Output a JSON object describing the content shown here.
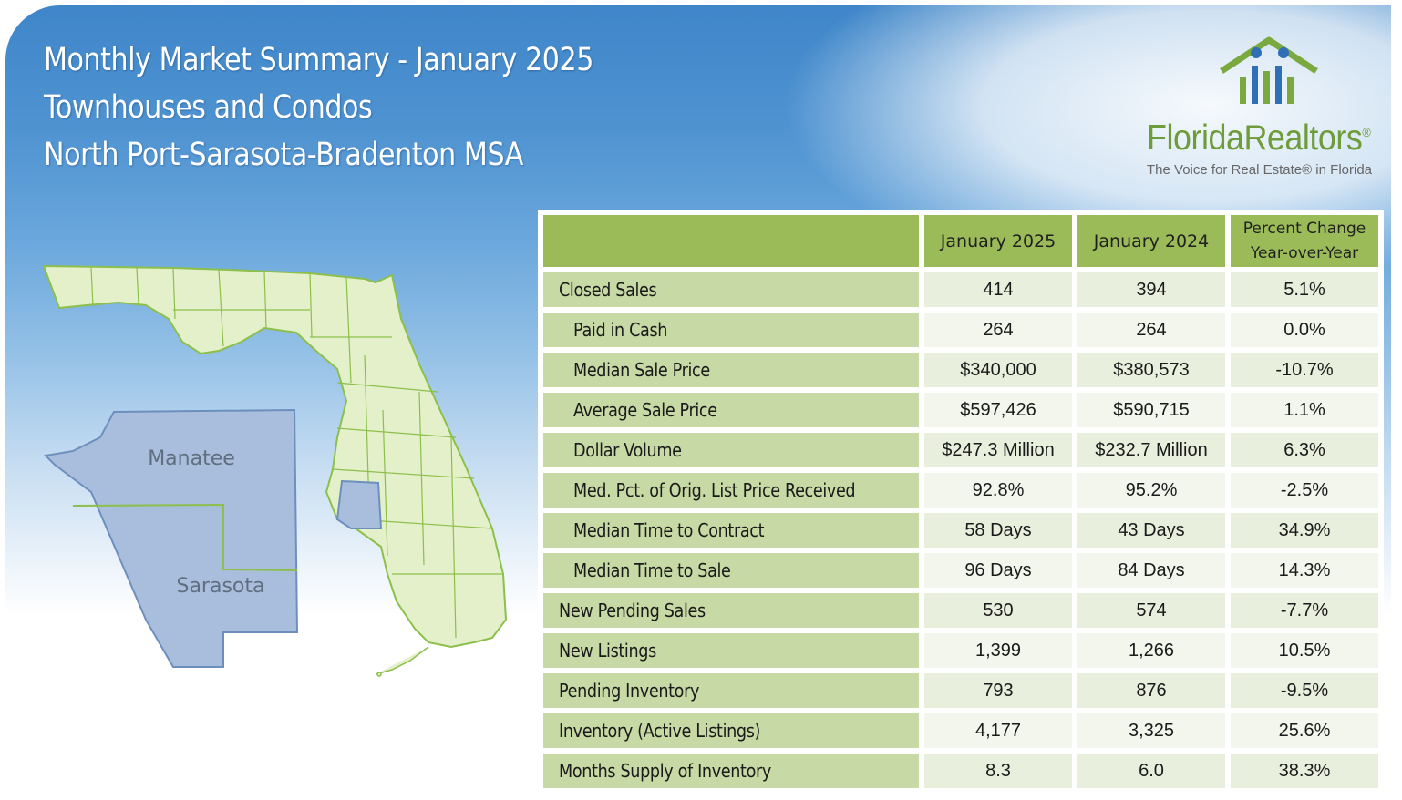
{
  "header": {
    "title_line1": "Monthly Market Summary - January 2025",
    "title_line2": "Townhouses and Condos",
    "title_line3": "North Port-Sarasota-Bradenton MSA"
  },
  "logo": {
    "brand_left": "Florida",
    "brand_right": "Realtors",
    "registered": "®",
    "tagline": "The Voice for Real Estate® in Florida"
  },
  "map": {
    "inset_county_north": "Manatee",
    "inset_county_south": "Sarasota"
  },
  "table": {
    "columns": [
      "January 2025",
      "January 2024",
      "Percent Change",
      "Year-over-Year"
    ],
    "rows": [
      {
        "label": "Closed Sales",
        "jan2025": "414",
        "jan2024": "394",
        "pct": "5.1%"
      },
      {
        "label": "Paid in Cash",
        "jan2025": "264",
        "jan2024": "264",
        "pct": "0.0%"
      },
      {
        "label": "Median Sale Price",
        "jan2025": "$340,000",
        "jan2024": "$380,573",
        "pct": "-10.7%"
      },
      {
        "label": "Average Sale Price",
        "jan2025": "$597,426",
        "jan2024": "$590,715",
        "pct": "1.1%"
      },
      {
        "label": "Dollar Volume",
        "jan2025": "$247.3 Million",
        "jan2024": "$232.7 Million",
        "pct": "6.3%"
      },
      {
        "label": "Med. Pct. of Orig. List Price Received",
        "jan2025": "92.8%",
        "jan2024": "95.2%",
        "pct": "-2.5%"
      },
      {
        "label": "Median Time to Contract",
        "jan2025": "58 Days",
        "jan2024": "43 Days",
        "pct": "34.9%"
      },
      {
        "label": "Median Time to Sale",
        "jan2025": "96 Days",
        "jan2024": "84 Days",
        "pct": "14.3%"
      },
      {
        "label": "New Pending Sales",
        "jan2025": "530",
        "jan2024": "574",
        "pct": "-7.7%"
      },
      {
        "label": "New Listings",
        "jan2025": "1,399",
        "jan2024": "1,266",
        "pct": "10.5%"
      },
      {
        "label": "Pending Inventory",
        "jan2025": "793",
        "jan2024": "876",
        "pct": "-9.5%"
      },
      {
        "label": "Inventory (Active Listings)",
        "jan2025": "4,177",
        "jan2024": "3,325",
        "pct": "25.6%"
      },
      {
        "label": "Months Supply of Inventory",
        "jan2025": "8.3",
        "jan2024": "6.0",
        "pct": "38.3%"
      }
    ]
  },
  "colors": {
    "header_green": "#9bbb59",
    "label_green": "#c7d9a4",
    "map_fill": "#e3f0c9",
    "map_stroke": "#8cbf4b",
    "inset_fill": "#a9bedc",
    "brand_green": "#6f9c3b"
  }
}
